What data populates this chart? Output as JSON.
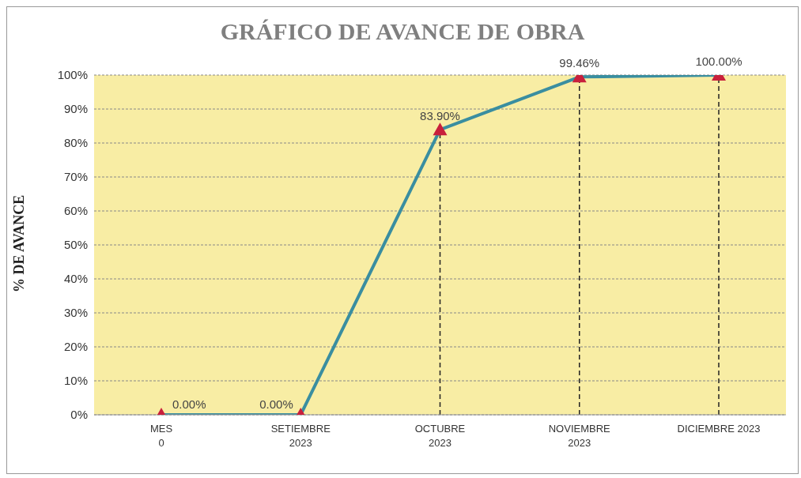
{
  "chart_data": {
    "type": "line",
    "title": "GRÁFICO DE AVANCE DE OBRA",
    "ylabel": "% DE AVANCE",
    "categories": [
      "MES\n0",
      "SETIEMBRE\n2023",
      "OCTUBRE\n2023",
      "NOVIEMBRE\n2023",
      "DICIEMBRE 2023"
    ],
    "series": [
      {
        "color": "#3a8ea0",
        "values": [
          0,
          0,
          83.9,
          99.46,
          100
        ],
        "value_labels": [
          "0.00%",
          "0.00%",
          "83.90%",
          "99.46%",
          "100.00%"
        ]
      }
    ],
    "ylim": [
      0,
      100
    ],
    "yticks": [
      {
        "value": 0,
        "label": "0%"
      },
      {
        "value": 10,
        "label": "10%"
      },
      {
        "value": 20,
        "label": "20%"
      },
      {
        "value": 30,
        "label": "30%"
      },
      {
        "value": 40,
        "label": "40%"
      },
      {
        "value": 50,
        "label": "50%"
      },
      {
        "value": 60,
        "label": "60%"
      },
      {
        "value": 70,
        "label": "70%"
      },
      {
        "value": 80,
        "label": "80%"
      },
      {
        "value": 90,
        "label": "90%"
      },
      {
        "value": 100,
        "label": "100%"
      }
    ],
    "ref_lines": [
      {
        "axis": "x",
        "value": "OCTUBRE\n2023",
        "line_style": "dashed",
        "color": "#222222"
      },
      {
        "axis": "x",
        "value": "NOVIEMBRE\n2023",
        "line_style": "dashed",
        "color": "#222222"
      },
      {
        "axis": "x",
        "value": "DICIEMBRE 2023",
        "line_style": "dashed",
        "color": "#222222"
      }
    ],
    "grid": "y",
    "legend": false,
    "marker": "triangle",
    "line_style": "solid"
  }
}
